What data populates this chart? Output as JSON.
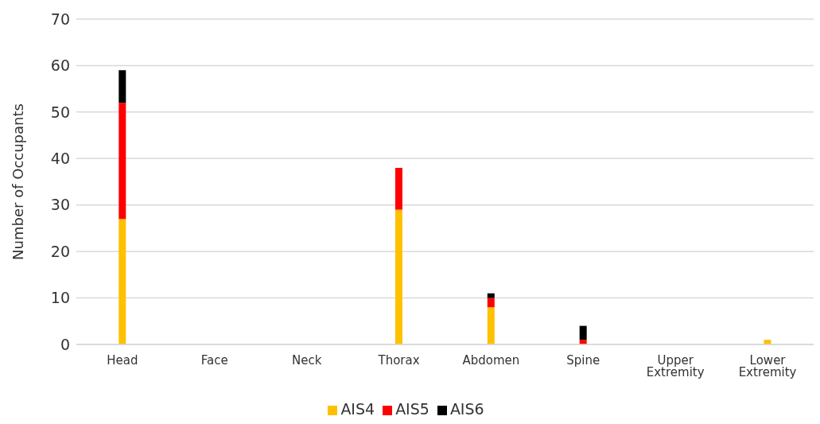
{
  "chart_data": {
    "type": "bar",
    "stacked": true,
    "ylabel": "Number of Occupants",
    "categories": [
      "Head",
      "Face",
      "Neck",
      "Thorax",
      "Abdomen",
      "Spine",
      "Upper Extremity",
      "Lower Extremity"
    ],
    "series": [
      {
        "name": "AIS4",
        "color": "#ffc000",
        "values": [
          27,
          0,
          0,
          29,
          8,
          0,
          0,
          1
        ]
      },
      {
        "name": "AIS5",
        "color": "#ff0000",
        "values": [
          25,
          0,
          0,
          9,
          2,
          1,
          0,
          0
        ]
      },
      {
        "name": "AIS6",
        "color": "#000000",
        "values": [
          7,
          0,
          0,
          0,
          1,
          3,
          0,
          0
        ]
      }
    ],
    "ylim": [
      0,
      70
    ],
    "yticks": [
      0,
      10,
      20,
      30,
      40,
      50,
      60,
      70
    ],
    "grid": "y",
    "legend": "bottom"
  }
}
